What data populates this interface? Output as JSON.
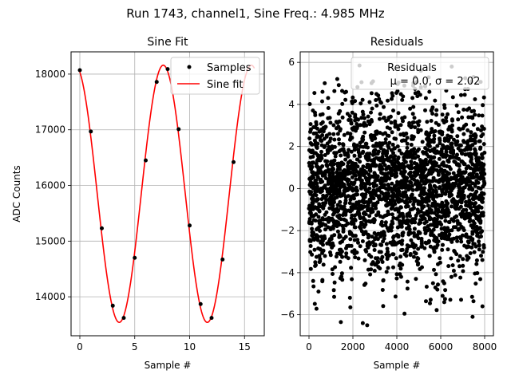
{
  "figure": {
    "suptitle": "Run 1743, channel1, Sine Freq.: 4.985 MHz"
  },
  "chart_data": [
    {
      "type": "line",
      "title": "Sine Fit",
      "xlabel": "Sample #",
      "ylabel": "ADC Counts",
      "xlim": [
        -0.8,
        16.8
      ],
      "ylim": [
        13300,
        18400
      ],
      "xticks": [
        0,
        5,
        10,
        15
      ],
      "yticks": [
        14000,
        15000,
        16000,
        17000,
        18000
      ],
      "grid": true,
      "legend": {
        "placement": "top-right",
        "entries": [
          "Samples",
          "Sine fit"
        ]
      },
      "series": [
        {
          "name": "Samples",
          "style": "markers",
          "color": "#000000",
          "x": [
            0,
            1,
            2,
            3,
            4,
            5,
            6,
            7,
            8,
            9,
            10,
            11,
            12,
            13,
            14
          ],
          "y": [
            18070,
            16970,
            15230,
            13840,
            13620,
            14700,
            16450,
            17860,
            18090,
            17010,
            15280,
            13870,
            13620,
            14670,
            16420
          ]
        },
        {
          "name": "Sine fit",
          "style": "line",
          "color": "#ff0000",
          "model": {
            "mean": 15850,
            "amplitude": 2310,
            "period": 8.02,
            "peak_at": 7.6,
            "x_start": 0,
            "x_end": 15.9
          }
        }
      ]
    },
    {
      "type": "scatter",
      "title": "Residuals",
      "xlabel": "Sample #",
      "ylabel": "",
      "xlim": [
        -400,
        8400
      ],
      "ylim": [
        -7.0,
        6.5
      ],
      "xticks": [
        0,
        2000,
        4000,
        6000,
        8000
      ],
      "yticks": [
        -6,
        -4,
        -2,
        0,
        2,
        4,
        6
      ],
      "grid": true,
      "legend": {
        "placement": "top-right",
        "entries": [
          "Residuals",
          "μ = 0.0, σ = 2.02"
        ]
      },
      "series": [
        {
          "name": "Residuals",
          "color": "#000000",
          "mean": 0.0,
          "sigma": 2.02,
          "n_points": 8000,
          "sample_x": [
            1450,
            2450,
            2650,
            4350,
            7450,
            7900,
            2300,
            5100,
            6500
          ],
          "sample_y": [
            -6.35,
            -6.4,
            -6.5,
            -5.95,
            -6.1,
            -5.6,
            5.85,
            5.6,
            5.8
          ]
        }
      ]
    }
  ]
}
